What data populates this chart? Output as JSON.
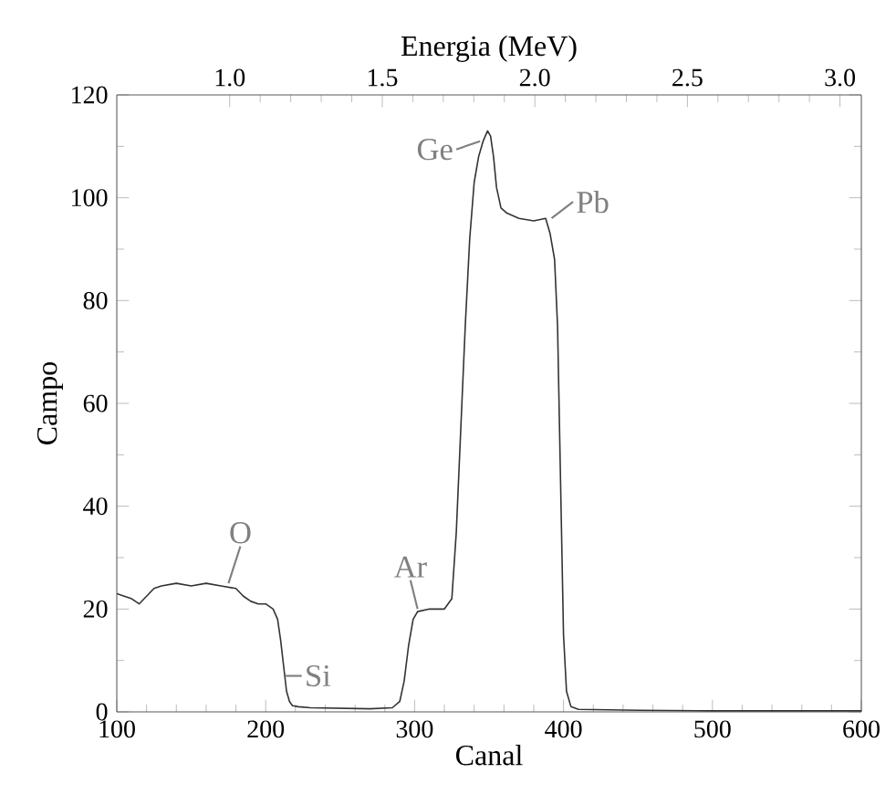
{
  "chart_data": {
    "type": "line",
    "xlabel": "Canal",
    "ylabel": "Campo",
    "x2label": "Energia (MeV)",
    "xlim": [
      100,
      600
    ],
    "xticks": [
      100,
      200,
      300,
      400,
      500,
      600
    ],
    "ylim": [
      0,
      120
    ],
    "yticks": [
      0,
      20,
      40,
      60,
      80,
      100,
      120
    ],
    "x2lim": [
      0.63,
      3.07
    ],
    "x2ticks": [
      {
        "value": 1.0,
        "label": "1.0"
      },
      {
        "value": 1.5,
        "label": "1.5"
      },
      {
        "value": 2.0,
        "label": "2.0"
      },
      {
        "value": 2.5,
        "label": "2.5"
      },
      {
        "value": 3.0,
        "label": "3.0"
      }
    ],
    "grid": false,
    "marker": "none",
    "line_style": "solid",
    "series": [
      {
        "color": "#333333",
        "x": [
          100,
          105,
          110,
          115,
          120,
          125,
          130,
          140,
          150,
          160,
          170,
          180,
          185,
          190,
          195,
          200,
          205,
          208,
          210,
          212,
          214,
          216,
          218,
          222,
          230,
          250,
          270,
          285,
          290,
          293,
          296,
          299,
          302,
          310,
          320,
          325,
          328,
          331,
          334,
          337,
          340,
          343,
          346,
          349,
          351,
          353,
          355,
          358,
          362,
          370,
          380,
          388,
          391,
          394,
          396,
          398,
          400,
          402,
          405,
          410,
          450,
          500,
          550,
          600
        ],
        "values": [
          23,
          22.5,
          22,
          21,
          22.5,
          24,
          24.5,
          25,
          24.5,
          25,
          24.5,
          24,
          22.5,
          21.5,
          21,
          21,
          20,
          18,
          14,
          9,
          4,
          2,
          1.2,
          1,
          0.8,
          0.7,
          0.6,
          0.8,
          2,
          6,
          13,
          18,
          19.5,
          20,
          20,
          22,
          35,
          55,
          75,
          92,
          103,
          108,
          111,
          113,
          112,
          108,
          102,
          98,
          97,
          96,
          95.5,
          96,
          93,
          88,
          75,
          45,
          15,
          4,
          1,
          0.5,
          0.3,
          0.2,
          0.2,
          0.2
        ]
      }
    ],
    "annotations": [
      {
        "text": "O",
        "x": 175,
        "y": 25
      },
      {
        "text": "Si",
        "x": 213,
        "y": 7
      },
      {
        "text": "Ar",
        "x": 302,
        "y": 20
      },
      {
        "text": "Ge",
        "x": 344,
        "y": 111
      },
      {
        "text": "Pb",
        "x": 392,
        "y": 96
      }
    ]
  }
}
